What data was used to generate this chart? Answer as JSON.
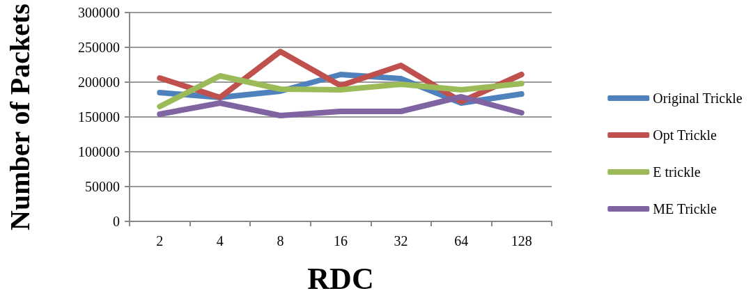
{
  "chart_data": {
    "type": "line",
    "xlabel": "RDC",
    "ylabel": "Number of Packets",
    "categories": [
      "2",
      "4",
      "8",
      "16",
      "32",
      "64",
      "128"
    ],
    "series": [
      {
        "name": "Original Trickle",
        "color": "#4f81bd",
        "values": [
          185000,
          178000,
          187000,
          211000,
          205000,
          170000,
          183000
        ]
      },
      {
        "name": "Opt Trickle",
        "color": "#c0504d",
        "values": [
          206000,
          178000,
          244000,
          195000,
          224000,
          172000,
          211000
        ]
      },
      {
        "name": "E trickle",
        "color": "#9bbb59",
        "values": [
          165000,
          209000,
          190000,
          189000,
          197000,
          189000,
          198000
        ]
      },
      {
        "name": "ME Trickle",
        "color": "#8064a2",
        "values": [
          154000,
          170000,
          152000,
          158000,
          158000,
          179000,
          156000
        ]
      }
    ],
    "ylim": [
      0,
      300000
    ],
    "yticks": [
      0,
      50000,
      100000,
      150000,
      200000,
      250000,
      300000
    ],
    "grid": "y",
    "legend": "right",
    "marker": "none",
    "line_style": "solid"
  }
}
